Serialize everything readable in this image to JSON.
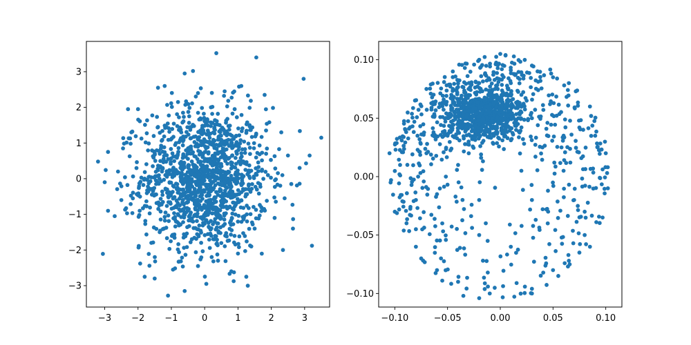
{
  "figure": {
    "background": "#ffffff",
    "axes_color": "#000000",
    "marker_color": "#1f77b4"
  },
  "chart_data": [
    {
      "type": "scatter",
      "title": "",
      "xlabel": "",
      "ylabel": "",
      "xlim": [
        -3.55,
        3.75
      ],
      "ylim": [
        -3.6,
        3.85
      ],
      "grid": false,
      "xticks": [
        -3,
        -2,
        -1,
        0,
        1,
        2,
        3
      ],
      "yticks": [
        -3,
        -2,
        -1,
        0,
        1,
        2,
        3
      ],
      "xtick_labels": [
        "−3",
        "−2",
        "−1",
        "0",
        "1",
        "2",
        "3"
      ],
      "ytick_labels": [
        "−3",
        "−2",
        "−1",
        "0",
        "1",
        "2",
        "3"
      ],
      "series": [
        {
          "color": "#1f77b4",
          "points": [
            [
              0.35,
              3.52
            ],
            [
              1.55,
              3.4
            ],
            [
              2.97,
              2.8
            ],
            [
              -1.1,
              -3.28
            ],
            [
              -0.35,
              3.02
            ],
            [
              -0.6,
              2.95
            ],
            [
              3.5,
              1.15
            ],
            [
              -3.2,
              0.48
            ],
            [
              -2.9,
              -0.9
            ],
            [
              -2.7,
              -1.05
            ],
            [
              -1.5,
              -2.8
            ],
            [
              -1.8,
              -2.75
            ],
            [
              -0.6,
              -3.15
            ],
            [
              0.05,
              -2.95
            ],
            [
              1.25,
              -2.75
            ],
            [
              3.22,
              -1.88
            ],
            [
              2.35,
              -2.0
            ],
            [
              2.65,
              -1.4
            ],
            [
              3.15,
              0.65
            ],
            [
              2.85,
              0.3
            ],
            [
              -2.9,
              0.75
            ],
            [
              -2.3,
              1.95
            ],
            [
              -2.0,
              1.95
            ],
            [
              -1.4,
              2.55
            ],
            [
              -1.2,
              2.6
            ],
            [
              1.1,
              2.6
            ],
            [
              1.8,
              2.35
            ],
            [
              0.6,
              2.45
            ],
            [
              -0.2,
              2.4
            ],
            [
              -3.0,
              -0.1
            ],
            [
              -2.5,
              -0.6
            ],
            [
              2.3,
              1.3
            ],
            [
              2.5,
              0.65
            ],
            [
              2.1,
              -1.1
            ],
            [
              -2.2,
              1.3
            ],
            [
              -1.6,
              -1.8
            ],
            [
              1.0,
              -2.1
            ],
            [
              -0.2,
              -2.45
            ],
            [
              0.4,
              -2.3
            ],
            [
              1.4,
              -1.9
            ],
            [
              -0.8,
              2.15
            ],
            [
              0.9,
              1.95
            ],
            [
              -1.8,
              0.0
            ],
            [
              1.9,
              0.1
            ],
            [
              -1.95,
              -0.9
            ],
            [
              1.7,
              -0.8
            ],
            [
              -1.35,
              -1.5
            ],
            [
              1.35,
              1.5
            ],
            [
              -1.4,
              1.45
            ],
            [
              1.5,
              -1.4
            ],
            [
              -2.6,
              0.2
            ],
            [
              2.6,
              -0.15
            ],
            [
              -2.45,
              0.85
            ],
            [
              2.4,
              -0.55
            ],
            [
              0.8,
              -2.6
            ],
            [
              -0.95,
              -2.55
            ]
          ]
        }
      ]
    },
    {
      "type": "scatter",
      "title": "",
      "xlabel": "",
      "ylabel": "",
      "xlim": [
        -0.1153,
        0.1153
      ],
      "ylim": [
        -0.1116,
        0.1157
      ],
      "grid": false,
      "xticks": [
        -0.1,
        -0.05,
        0.0,
        0.05,
        0.1
      ],
      "yticks": [
        -0.1,
        -0.05,
        0.0,
        0.05,
        0.1
      ],
      "xtick_labels": [
        "−0.10",
        "−0.05",
        "0.00",
        "0.05",
        "0.10"
      ],
      "ytick_labels": [
        "−0.10",
        "−0.05",
        "0.00",
        "0.05",
        "0.10"
      ],
      "series": [
        {
          "color": "#1f77b4",
          "points": [
            [
              -0.105,
              0.02
            ],
            [
              -0.104,
              -0.005
            ],
            [
              -0.1,
              -0.03
            ],
            [
              0.1,
              0.02
            ],
            [
              0.102,
              -0.01
            ],
            [
              0.097,
              -0.035
            ],
            [
              0.0,
              0.105
            ],
            [
              0.005,
              0.104
            ],
            [
              -0.02,
              0.1
            ],
            [
              0.03,
              0.095
            ],
            [
              -0.045,
              0.09
            ],
            [
              0.05,
              0.085
            ],
            [
              -0.07,
              0.075
            ],
            [
              0.065,
              0.08
            ],
            [
              -0.09,
              0.04
            ],
            [
              0.085,
              0.06
            ],
            [
              0.09,
              0.035
            ],
            [
              -0.095,
              0.01
            ],
            [
              -0.08,
              -0.06
            ],
            [
              0.085,
              -0.06
            ],
            [
              -0.075,
              -0.07
            ],
            [
              0.065,
              -0.072
            ],
            [
              -0.055,
              -0.089
            ],
            [
              0.055,
              -0.085
            ],
            [
              -0.02,
              -0.104
            ],
            [
              -0.01,
              -0.1
            ],
            [
              0.03,
              -0.1
            ],
            [
              0.03,
              -0.096
            ],
            [
              -0.035,
              -0.102
            ],
            [
              -0.04,
              -0.09
            ],
            [
              -0.06,
              -0.08
            ],
            [
              0.05,
              -0.08
            ],
            [
              0.075,
              -0.065
            ],
            [
              0.08,
              -0.05
            ],
            [
              -0.08,
              -0.045
            ],
            [
              0.08,
              -0.03
            ],
            [
              -0.055,
              -0.04
            ],
            [
              0.045,
              -0.04
            ],
            [
              -0.02,
              -0.05
            ],
            [
              0.01,
              -0.06
            ],
            [
              0.03,
              -0.02
            ],
            [
              -0.06,
              -0.015
            ],
            [
              0.06,
              0.005
            ],
            [
              -0.04,
              0.01
            ],
            [
              0.02,
              0.005
            ],
            [
              -0.02,
              -0.02
            ],
            [
              0.07,
              -0.02
            ],
            [
              -0.08,
              -0.02
            ],
            [
              0.04,
              0.025
            ],
            [
              -0.07,
              0.02
            ],
            [
              0.06,
              0.035
            ],
            [
              -0.05,
              0.035
            ],
            [
              0.02,
              0.07
            ],
            [
              -0.03,
              0.075
            ],
            [
              0.01,
              0.06
            ],
            [
              -0.01,
              0.055
            ],
            [
              -0.02,
              0.045
            ],
            [
              0.0,
              0.05
            ],
            [
              -0.03,
              0.06
            ],
            [
              0.01,
              0.07
            ],
            [
              -0.015,
              0.065
            ],
            [
              0.005,
              0.045
            ],
            [
              -0.04,
              0.055
            ],
            [
              0.02,
              0.055
            ],
            [
              -0.025,
              0.04
            ],
            [
              0.015,
              0.04
            ],
            [
              -0.035,
              0.045
            ],
            [
              -0.005,
              0.075
            ],
            [
              0.025,
              0.065
            ],
            [
              -0.045,
              0.065
            ],
            [
              0.03,
              0.05
            ],
            [
              -0.01,
              0.035
            ],
            [
              0.0,
              0.065
            ],
            [
              -0.02,
              0.08
            ],
            [
              0.01,
              0.08
            ],
            [
              -0.03,
              0.03
            ]
          ]
        }
      ]
    }
  ]
}
